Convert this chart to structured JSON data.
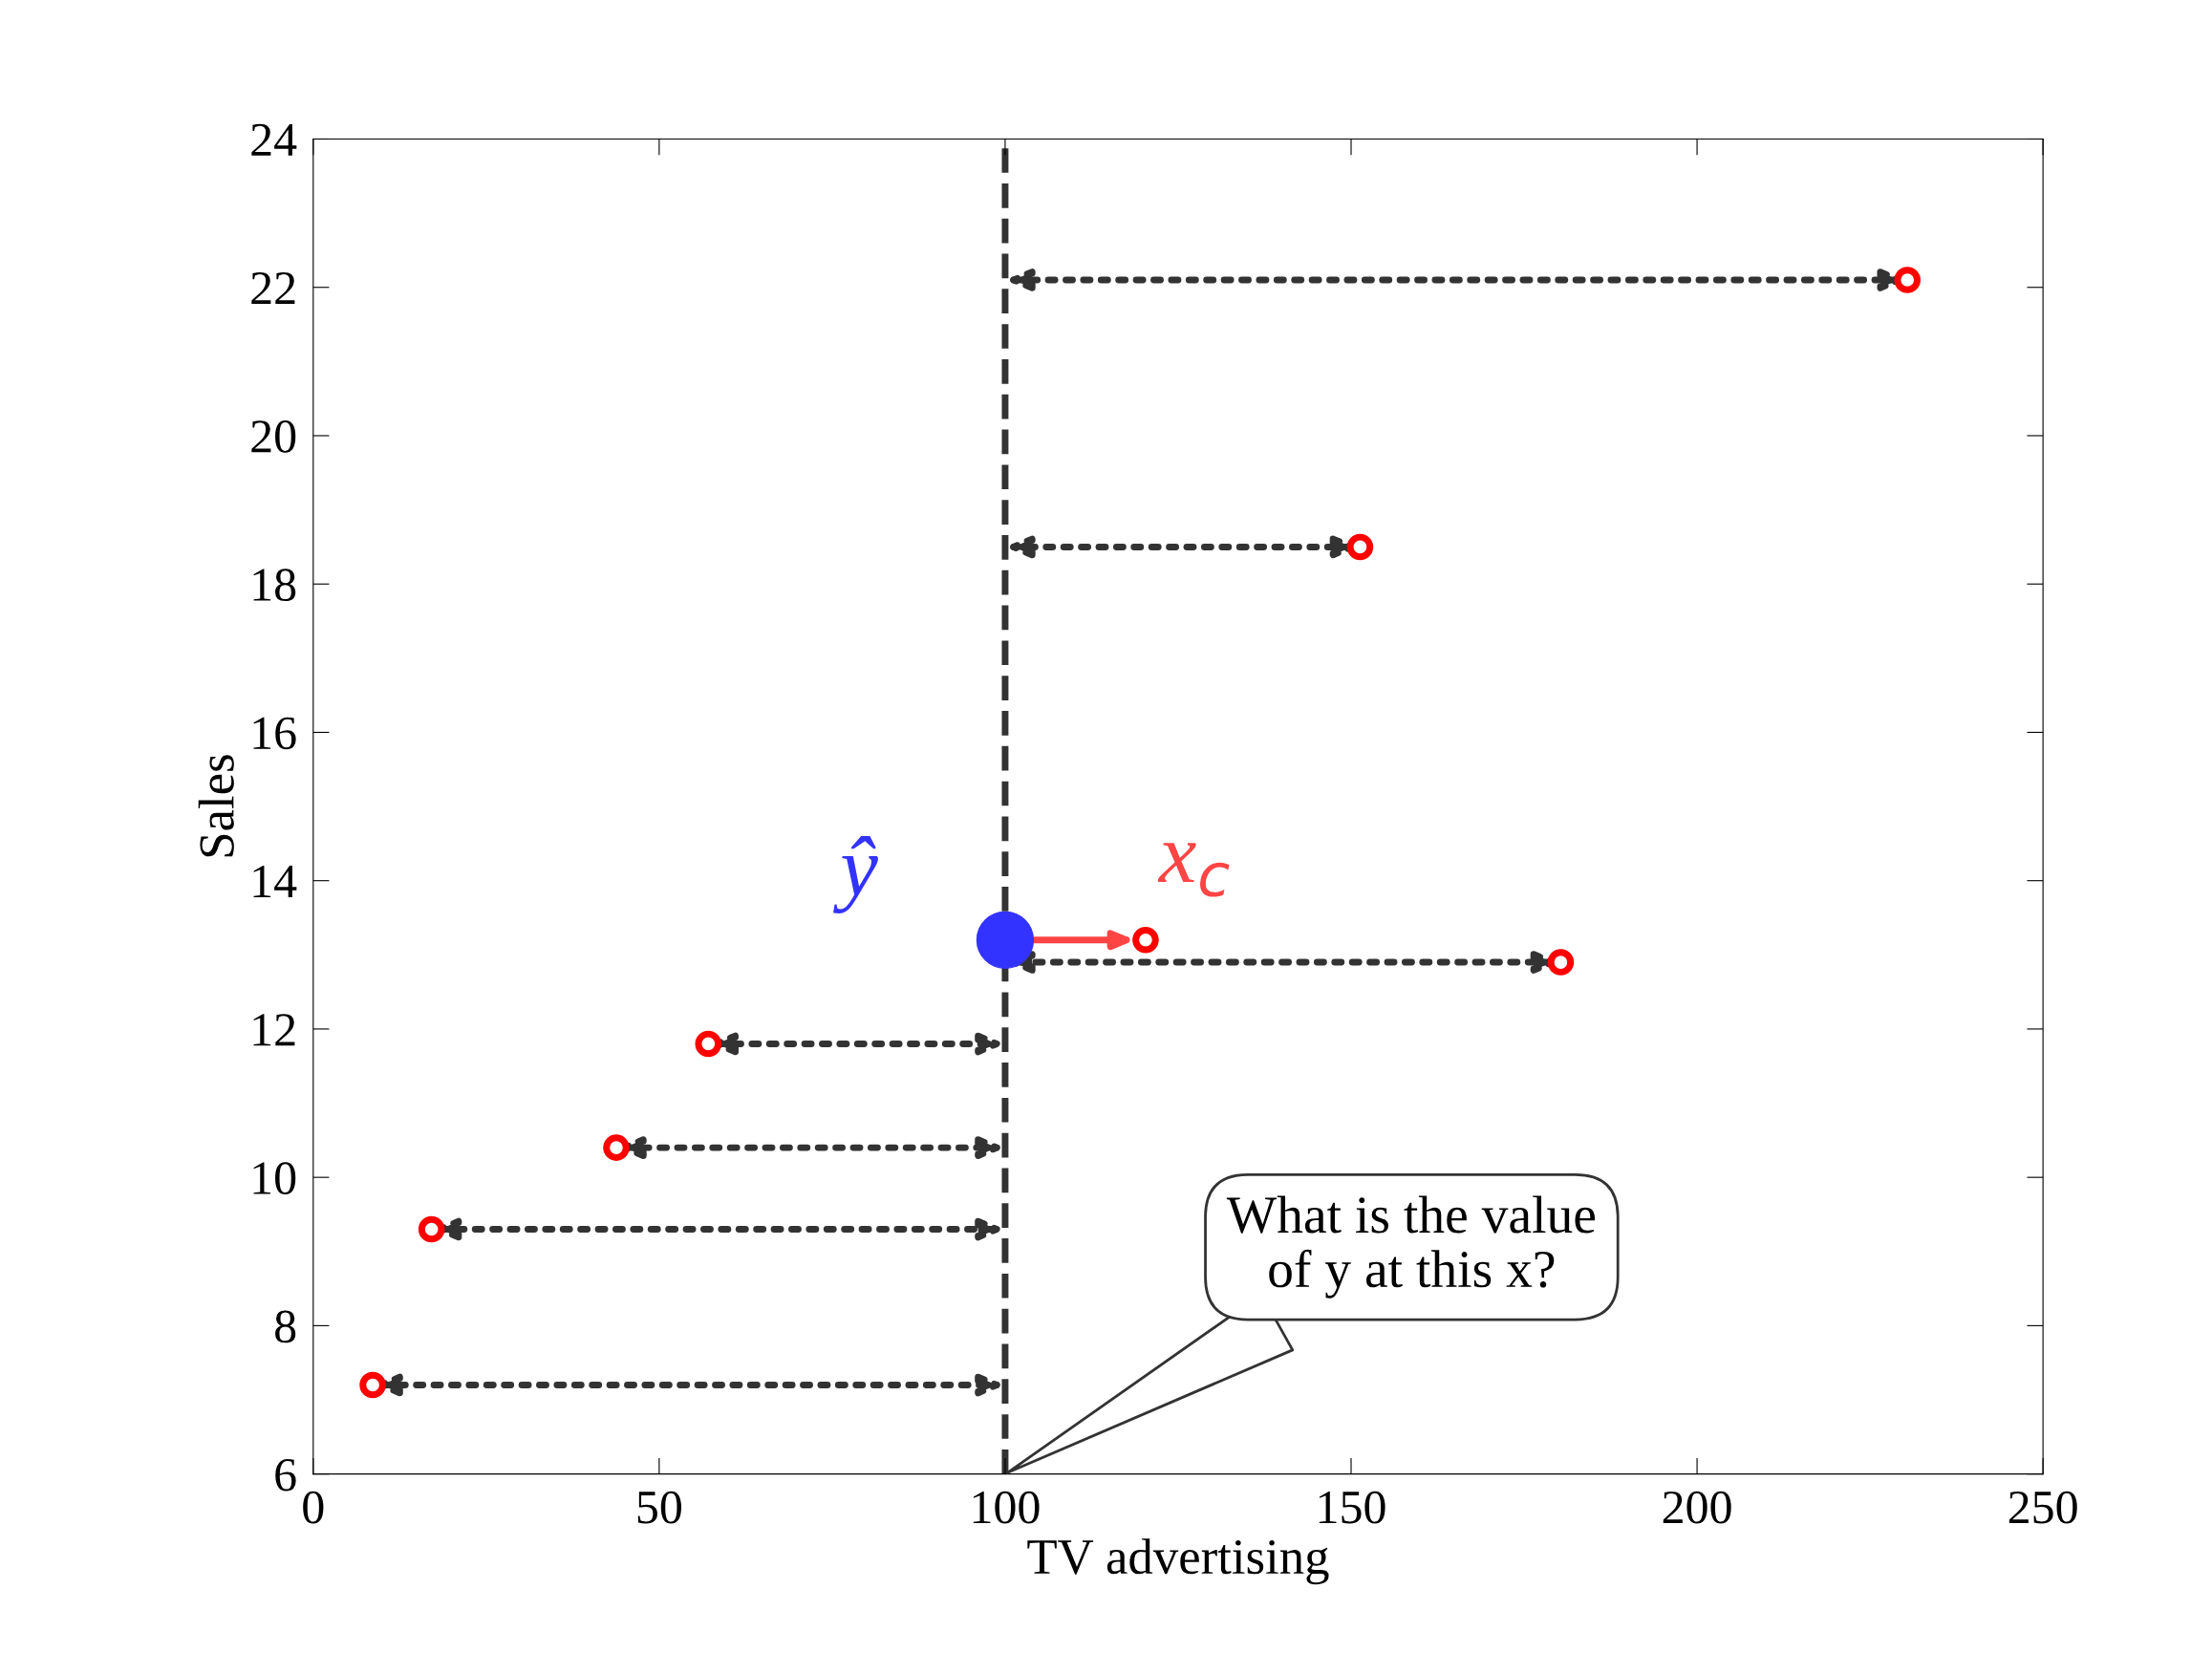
{
  "chart_data": {
    "type": "scatter",
    "xlabel": "TV advertising",
    "ylabel": "Sales",
    "xlim": [
      0,
      250
    ],
    "ylim": [
      6,
      24
    ],
    "xticks": [
      0,
      50,
      100,
      150,
      200,
      250
    ],
    "yticks": [
      6,
      8,
      10,
      12,
      14,
      16,
      18,
      20,
      22,
      24
    ],
    "grid": false,
    "marker": "circle",
    "series": [
      {
        "color": "#ff0000",
        "x": [
          8.6,
          17.1,
          43.8,
          57.1,
          120.3,
          180.3,
          151.3,
          230.4
        ],
        "values": [
          7.2,
          9.3,
          10.4,
          11.8,
          13.2,
          12.9,
          18.5,
          22.1
        ]
      },
      {
        "name": "ŷ",
        "color": "#3333ff",
        "x": [
          100
        ],
        "values": [
          13.2
        ]
      }
    ],
    "ref_lines": [
      {
        "axis": "x",
        "value": 100,
        "color": "#333333",
        "line_style": "dashed"
      }
    ],
    "annotations": [
      {
        "text": "x$_{c}$",
        "x": 120.3,
        "y": 13.2
      },
      "What is the value\nof y at this x?"
    ]
  }
}
